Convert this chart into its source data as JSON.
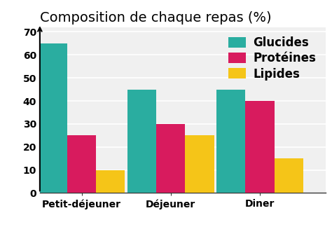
{
  "title": "Composition de chaque repas (%)",
  "categories": [
    "Petit-déjeuner",
    "Déjeuner",
    "Diner"
  ],
  "series": [
    {
      "label": "Glucides",
      "values": [
        65,
        45,
        45
      ],
      "color": "#2aada0"
    },
    {
      "label": "Protéines",
      "values": [
        25,
        30,
        40
      ],
      "color": "#d81b5e"
    },
    {
      "label": "Lipides",
      "values": [
        10,
        25,
        15
      ],
      "color": "#f5c518"
    }
  ],
  "ylim": [
    0,
    72
  ],
  "yticks": [
    0,
    10,
    20,
    30,
    40,
    50,
    60,
    70
  ],
  "background_color": "#ffffff",
  "plot_bg_color": "#f0f0f0",
  "title_fontsize": 14,
  "tick_fontsize": 10,
  "legend_fontsize": 12,
  "bar_width": 0.22,
  "group_positions": [
    0.32,
    1.0,
    1.68
  ]
}
